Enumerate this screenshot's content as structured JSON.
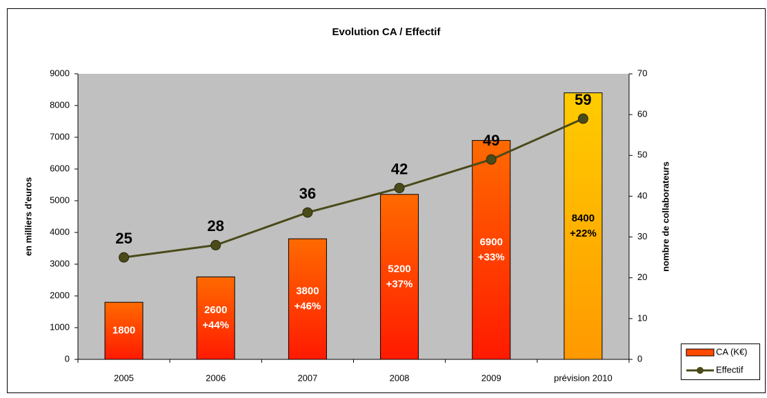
{
  "chart_data": {
    "type": "bar_line",
    "title": "Evolution CA / Effectif",
    "ylabel": "en milliers d'euros",
    "y2label": "nombre de collaborateurs",
    "categories": [
      "2005",
      "2006",
      "2007",
      "2008",
      "2009",
      "prévision 2010"
    ],
    "series": [
      {
        "name": "CA (K€)",
        "type": "bar",
        "color": "#ff4a00",
        "gradients": [
          [
            "#ff6a00",
            "#ff1a00"
          ],
          [
            "#ff6a00",
            "#ff1a00"
          ],
          [
            "#ff6a00",
            "#ff1a00"
          ],
          [
            "#ff6a00",
            "#ff1a00"
          ],
          [
            "#ff6a00",
            "#ff1a00"
          ],
          [
            "#ffcc00",
            "#ff9900"
          ]
        ],
        "values": [
          1800,
          2600,
          3800,
          5200,
          6900,
          8400
        ],
        "growth_labels": [
          null,
          "+44%",
          "+46%",
          "+37%",
          "+33%",
          "+22%"
        ]
      },
      {
        "name": "Effectif",
        "type": "line",
        "axis": "y2",
        "color": "#4a4a1a",
        "values": [
          25,
          28,
          36,
          42,
          49,
          59
        ]
      }
    ],
    "ylim": [
      0,
      9000
    ],
    "yticks": [
      0,
      1000,
      2000,
      3000,
      4000,
      5000,
      6000,
      7000,
      8000,
      9000
    ],
    "y2lim": [
      0,
      70
    ],
    "y2ticks": [
      0,
      10,
      20,
      30,
      40,
      50,
      60,
      70
    ],
    "plot_background": "#c0c0c0",
    "legend": "bottom-right"
  }
}
